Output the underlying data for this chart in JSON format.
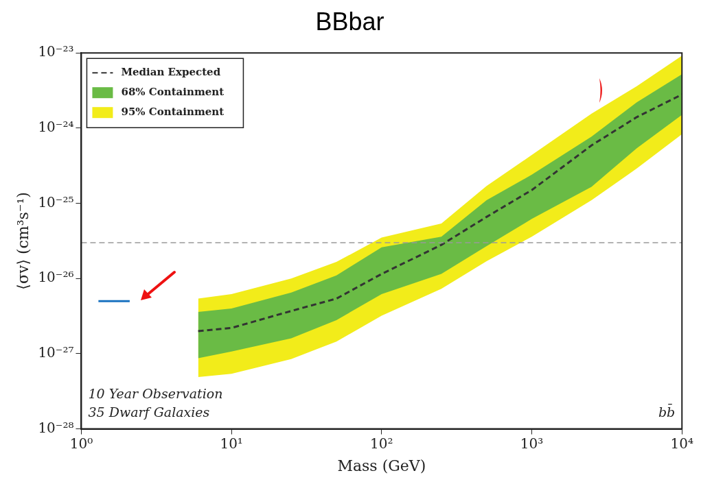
{
  "chart_data": {
    "type": "line",
    "title": "BBbar",
    "xlabel": "Mass (GeV)",
    "ylabel": "⟨σv⟩ (cm³s⁻¹)",
    "log": "xy",
    "xlim": [
      1,
      10000
    ],
    "ylim": [
      1e-28,
      1e-23
    ],
    "xticks": [
      {
        "value": 1,
        "label": "10⁰"
      },
      {
        "value": 10,
        "label": "10¹"
      },
      {
        "value": 100,
        "label": "10²"
      },
      {
        "value": 1000,
        "label": "10³"
      },
      {
        "value": 10000,
        "label": "10⁴"
      }
    ],
    "yticks": [
      {
        "value": 1e-28,
        "label": "10⁻²⁸"
      },
      {
        "value": 1e-27,
        "label": "10⁻²⁷"
      },
      {
        "value": 1e-26,
        "label": "10⁻²⁶"
      },
      {
        "value": 1e-25,
        "label": "10⁻²⁵"
      },
      {
        "value": 1e-24,
        "label": "10⁻²⁴"
      },
      {
        "value": 1e-23,
        "label": "10⁻²³"
      }
    ],
    "x": [
      6,
      10,
      25,
      50,
      100,
      250,
      500,
      1000,
      2500,
      5000,
      10000
    ],
    "series": [
      {
        "name": "Median Expected",
        "type": "line",
        "line_style": "dashed",
        "color": "#333333",
        "values": [
          2e-27,
          2.2e-27,
          3.7e-27,
          5.4e-27,
          1.15e-26,
          2.8e-26,
          6.6e-26,
          1.5e-25,
          5.9e-25,
          1.4e-24,
          2.8e-24
        ]
      },
      {
        "name": "68% Containment",
        "type": "line",
        "color": "#6abb45",
        "values": [
          null,
          null,
          null,
          null,
          null,
          null,
          null,
          null,
          null,
          null,
          null
        ],
        "lower": [
          8.7e-28,
          1.07e-27,
          1.6e-27,
          2.8e-27,
          6.2e-27,
          1.15e-26,
          2.7e-26,
          6.2e-26,
          1.66e-25,
          5.4e-25,
          1.5e-24
        ],
        "upper": [
          3.6e-27,
          4e-27,
          6.5e-27,
          1.1e-26,
          2.6e-26,
          3.6e-26,
          1.1e-25,
          2.4e-25,
          7.7e-25,
          2.2e-24,
          5.2e-24
        ]
      },
      {
        "name": "95% Containment",
        "type": "line",
        "color": "#f2ec1a",
        "values": [
          null,
          null,
          null,
          null,
          null,
          null,
          null,
          null,
          null,
          null,
          null
        ],
        "lower": [
          4.9e-28,
          5.4e-28,
          8.5e-28,
          1.45e-27,
          3.2e-27,
          7.3e-27,
          1.7e-26,
          3.6e-26,
          1.1e-25,
          2.9e-25,
          8.3e-25
        ],
        "upper": [
          5.4e-27,
          6.2e-27,
          1e-26,
          1.66e-26,
          3.5e-26,
          5.4e-26,
          1.7e-25,
          4.4e-25,
          1.56e-24,
          3.6e-24,
          9.2e-24
        ]
      },
      {
        "type": "line",
        "line_style": "solid",
        "color": "#1a72c0",
        "x": [
          1.3,
          2.1
        ],
        "values": [
          5e-27,
          5e-27
        ]
      }
    ],
    "ref_lines": [
      {
        "axis": "y",
        "value": 3e-26,
        "color": "#999999",
        "line_style": "dashed"
      }
    ],
    "annotations": [
      "10 Year Observation",
      "35 Dwarf Galaxies",
      "bb̄"
    ],
    "legend": "top left",
    "marker": "none"
  }
}
